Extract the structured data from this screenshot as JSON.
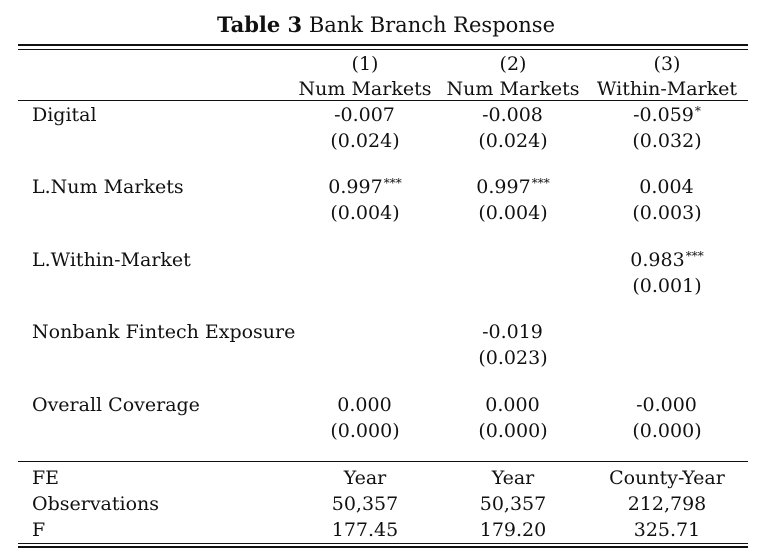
{
  "table": {
    "caption_label": "Table 3",
    "caption_title": "Bank Branch Response",
    "columns": [
      {
        "number": "(1)",
        "name": "Num Markets"
      },
      {
        "number": "(2)",
        "name": "Num Markets"
      },
      {
        "number": "(3)",
        "name": "Within-Market"
      }
    ],
    "rows": [
      {
        "label": "Digital",
        "coef": [
          {
            "v": "-0.007",
            "s": ""
          },
          {
            "v": "-0.008",
            "s": ""
          },
          {
            "v": "-0.059",
            "s": "*"
          }
        ],
        "se": [
          "(0.024)",
          "(0.024)",
          "(0.032)"
        ]
      },
      {
        "label": "L.Num Markets",
        "coef": [
          {
            "v": "0.997",
            "s": "***"
          },
          {
            "v": "0.997",
            "s": "***"
          },
          {
            "v": "0.004",
            "s": ""
          }
        ],
        "se": [
          "(0.004)",
          "(0.004)",
          "(0.003)"
        ]
      },
      {
        "label": "L.Within-Market",
        "coef": [
          {
            "v": "",
            "s": ""
          },
          {
            "v": "",
            "s": ""
          },
          {
            "v": "0.983",
            "s": "***"
          }
        ],
        "se": [
          "",
          "",
          "(0.001)"
        ]
      },
      {
        "label": "Nonbank Fintech Exposure",
        "coef": [
          {
            "v": "",
            "s": ""
          },
          {
            "v": "-0.019",
            "s": ""
          },
          {
            "v": "",
            "s": ""
          }
        ],
        "se": [
          "",
          "(0.023)",
          ""
        ]
      },
      {
        "label": "Overall Coverage",
        "coef": [
          {
            "v": "0.000",
            "s": ""
          },
          {
            "v": "0.000",
            "s": ""
          },
          {
            "v": "-0.000",
            "s": ""
          }
        ],
        "se": [
          "(0.000)",
          "(0.000)",
          "(0.000)"
        ]
      }
    ],
    "footer": [
      {
        "label": "FE",
        "values": [
          "Year",
          "Year",
          "County-Year"
        ]
      },
      {
        "label": "Observations",
        "values": [
          "50,357",
          "50,357",
          "212,798"
        ]
      },
      {
        "label": "F",
        "values": [
          "177.45",
          "179.20",
          "325.71"
        ]
      }
    ]
  }
}
